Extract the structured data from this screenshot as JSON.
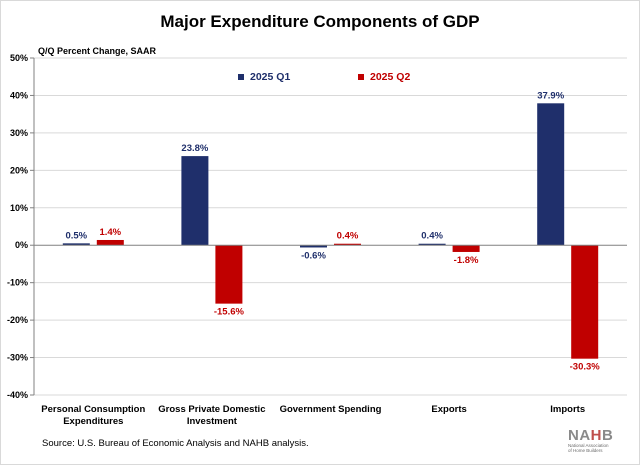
{
  "chart_data": {
    "type": "bar",
    "title": "Major Expenditure Components of GDP",
    "ylabel": "Q/Q Percent Change, SAAR",
    "categories": [
      [
        "Personal Consumption",
        "Expenditures"
      ],
      [
        "Gross Private Domestic",
        "Investment"
      ],
      [
        "Government Spending"
      ],
      [
        "Exports"
      ],
      [
        "Imports"
      ]
    ],
    "series": [
      {
        "name": "2025 Q1",
        "color": "#1f2f6b",
        "values": [
          0.5,
          23.8,
          -0.6,
          0.4,
          37.9
        ],
        "labels": [
          "0.5%",
          "23.8%",
          "-0.6%",
          "0.4%",
          "37.9%"
        ]
      },
      {
        "name": "2025 Q2",
        "color": "#c00000",
        "values": [
          1.4,
          -15.6,
          0.4,
          -1.8,
          -30.3
        ],
        "labels": [
          "1.4%",
          "-15.6%",
          "0.4%",
          "-1.8%",
          "-30.3%"
        ]
      }
    ],
    "ylim": [
      -40,
      50
    ],
    "yticks": [
      50,
      40,
      30,
      20,
      10,
      0,
      -10,
      -20,
      -30,
      -40
    ],
    "ytick_labels": [
      "50%",
      "40%",
      "30%",
      "20%",
      "10%",
      "0%",
      "-10%",
      "-20%",
      "-30%",
      "-40%"
    ],
    "grid": true,
    "legend": "top"
  },
  "source": "Source: U.S. Bureau of Economic Analysis and NAHB analysis.",
  "logo": {
    "text": "NAHB",
    "tagline_1": "National Association",
    "tagline_2": "of Home Builders"
  }
}
